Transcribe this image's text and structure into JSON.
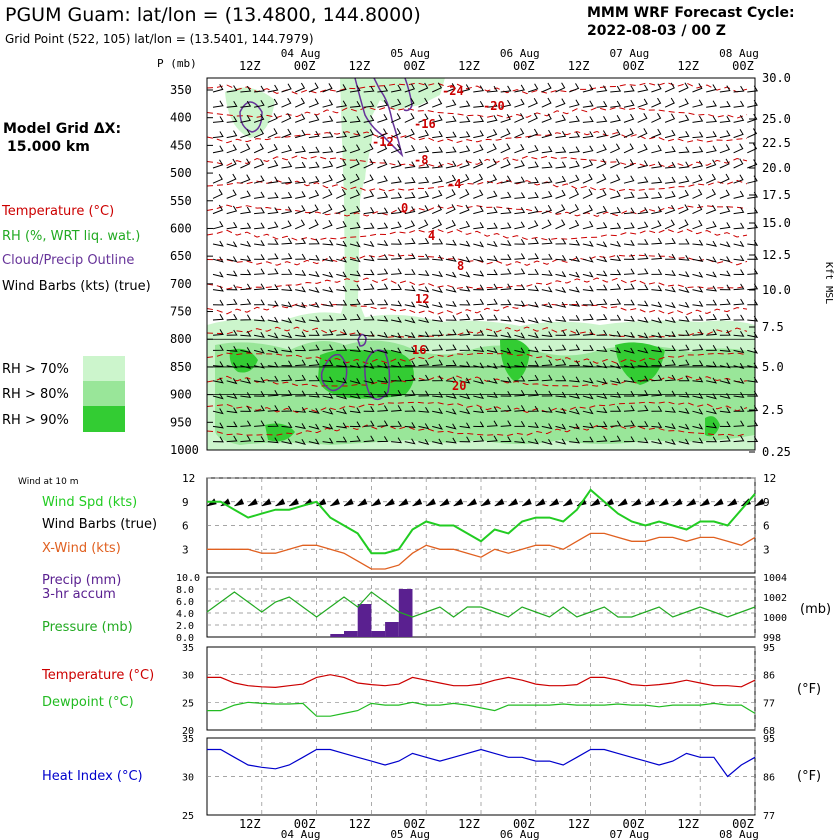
{
  "header": {
    "title": "PGUM Guam:  lat/lon = (13.4800, 144.8000)",
    "subtitle": "Grid Point (522, 105) lat/lon = (13.5401, 144.7979)",
    "model": "MMM WRF Forecast Cycle:",
    "cycle": "2022-08-03 / 00  Z",
    "grid_label": "Model Grid ΔX:",
    "grid_value": "15.000 km"
  },
  "legend": {
    "temperature": "Temperature (°C)",
    "rh": "RH (%, WRT liq. wat.)",
    "cloud": "Cloud/Precip Outline",
    "barbs": "Wind Barbs (kts) (true)",
    "rh70": "RH > 70%",
    "rh80": "RH > 80%",
    "rh90": "RH > 90%",
    "wind10m": "Wind at 10 m",
    "wspd": "Wind Spd (kts)",
    "wbarbs": "Wind Barbs (true)",
    "xwind": "X-Wind (kts)",
    "precip": "Precip (mm)",
    "precip2": "3-hr accum",
    "pressure": "Pressure (mb)",
    "pres_unit": "(mb)",
    "temp": "Temperature (°C)",
    "dewpoint": "Dewpoint (°C)",
    "temp_unit": "(°F)",
    "heatindex": "Heat Index (°C)",
    "hi_unit": "(°F)"
  },
  "colors": {
    "temperature": "#cc0000",
    "rh70": "#ccf5cc",
    "rh80": "#99e699",
    "rh90": "#33cc33",
    "cloud": "#663399",
    "wind_speed": "#22cc22",
    "x_wind": "#e06020",
    "precip": "#5a2090",
    "pressure": "#22aa22",
    "dewpoint": "#22bb22",
    "heat_index": "#0000cc"
  },
  "chart_data": [
    {
      "type": "heatmap",
      "panel": "cross-section",
      "time_labels": [
        "12Z",
        "00Z",
        "12Z",
        "00Z",
        "12Z",
        "00Z",
        "12Z",
        "00Z",
        "12Z",
        "00Z"
      ],
      "date_labels": [
        "04 Aug",
        "05 Aug",
        "06 Aug",
        "07 Aug",
        "08 Aug"
      ],
      "ylabel": "P (mb)",
      "y2label": "Kft MSL",
      "pressure_ticks": [
        350,
        400,
        450,
        500,
        550,
        600,
        650,
        700,
        750,
        800,
        850,
        900,
        950,
        1000
      ],
      "height_ticks": [
        "30.0",
        "25.0",
        "22.5",
        "20.0",
        "17.5",
        "15.0",
        "12.5",
        "10.0",
        "7.5",
        "5.0",
        "2.5",
        "0.25"
      ],
      "isotherm_labels": [
        "-24",
        "-20",
        "-16",
        "-12",
        "-8",
        "-4",
        "0",
        "4",
        "8",
        "12",
        "16",
        "20"
      ]
    },
    {
      "type": "line",
      "panel": "wind",
      "yticks": [
        3,
        6,
        9,
        12
      ],
      "ylim": [
        0,
        12
      ],
      "series": [
        {
          "name": "Wind Spd (kts)",
          "x": [
            0,
            3,
            6,
            9,
            12,
            15,
            18,
            21,
            24,
            27,
            30,
            33,
            36,
            39,
            42,
            45,
            48,
            51,
            54,
            57,
            60,
            63,
            66,
            69,
            72,
            75,
            78,
            81,
            84,
            87,
            90,
            93,
            96,
            99,
            102,
            105,
            108,
            111,
            114,
            117,
            120
          ],
          "values": [
            9,
            9,
            8,
            7,
            7.5,
            8,
            8,
            8.5,
            9,
            7,
            6,
            5,
            2.5,
            2.5,
            3,
            5.5,
            6.5,
            6,
            6,
            5,
            4,
            5.5,
            5,
            6.5,
            7,
            7,
            6.5,
            8,
            10.5,
            9,
            7.5,
            6.5,
            6,
            6.5,
            6,
            5.5,
            6.5,
            6.5,
            6,
            8,
            10
          ]
        },
        {
          "name": "X-Wind (kts)",
          "x": [
            0,
            3,
            6,
            9,
            12,
            15,
            18,
            21,
            24,
            27,
            30,
            33,
            36,
            39,
            42,
            45,
            48,
            51,
            54,
            57,
            60,
            63,
            66,
            69,
            72,
            75,
            78,
            81,
            84,
            87,
            90,
            93,
            96,
            99,
            102,
            105,
            108,
            111,
            114,
            117,
            120
          ],
          "values": [
            3,
            3,
            3,
            3,
            2.5,
            2.5,
            3,
            3.5,
            3.5,
            3,
            2.5,
            1.5,
            0.5,
            0.5,
            1,
            2.5,
            3.5,
            3,
            3,
            2.5,
            2,
            3,
            2.5,
            3,
            3.5,
            3.5,
            3,
            4,
            5,
            5,
            4.5,
            4,
            4,
            4.5,
            4.5,
            4,
            4.5,
            4.5,
            4,
            3.5,
            4.5
          ]
        }
      ]
    },
    {
      "type": "bar",
      "panel": "precip-pressure",
      "precip_ylim": [
        0,
        10
      ],
      "precip_ticks": [
        "0.0",
        "2.0",
        "4.0",
        "6.0",
        "8.0",
        "10.0"
      ],
      "pressure_ylim": [
        998,
        1004
      ],
      "pressure_ticks": [
        998,
        1000,
        1002,
        1004
      ],
      "precip": {
        "x": [
          27,
          30,
          33,
          36,
          39,
          42
        ],
        "values": [
          0.5,
          1,
          5.5,
          1,
          2.5,
          8
        ]
      },
      "pressure": {
        "x": [
          0,
          3,
          6,
          9,
          12,
          15,
          18,
          21,
          24,
          27,
          30,
          33,
          36,
          39,
          42,
          45,
          48,
          51,
          54,
          57,
          60,
          63,
          66,
          69,
          72,
          75,
          78,
          81,
          84,
          87,
          90,
          93,
          96,
          99,
          102,
          105,
          108,
          111,
          114,
          117,
          120
        ],
        "values": [
          1000.5,
          1001.5,
          1002.5,
          1001.5,
          1000.5,
          1001.5,
          1002,
          1001,
          1000,
          1001,
          1002,
          1001,
          1002.5,
          1001.5,
          1000.5,
          1000,
          1000.5,
          1001,
          1000,
          1001,
          1001,
          1000.5,
          1000,
          1001,
          1000.5,
          1000,
          1001,
          1000,
          1000.5,
          1001,
          1000,
          1000,
          1000.5,
          1001,
          1000,
          1000.5,
          1001,
          1000.5,
          1000,
          1000.5,
          1001
        ]
      }
    },
    {
      "type": "line",
      "panel": "temperature",
      "ylim": [
        20,
        35
      ],
      "yticks": [
        20,
        25,
        30,
        35
      ],
      "y2ticks": [
        68,
        77,
        86,
        95
      ],
      "series": [
        {
          "name": "Temperature (°C)",
          "x": [
            0,
            3,
            6,
            9,
            12,
            15,
            18,
            21,
            24,
            27,
            30,
            33,
            36,
            39,
            42,
            45,
            48,
            51,
            54,
            57,
            60,
            63,
            66,
            69,
            72,
            75,
            78,
            81,
            84,
            87,
            90,
            93,
            96,
            99,
            102,
            105,
            108,
            111,
            114,
            117,
            120
          ],
          "values": [
            29.5,
            29.5,
            28.5,
            28,
            27.8,
            27.7,
            28,
            28.3,
            29.5,
            30,
            29.5,
            28.5,
            28.2,
            28,
            28.3,
            29.5,
            29,
            28.5,
            28,
            28,
            28.3,
            29,
            29.5,
            29,
            28.3,
            28,
            28,
            28.2,
            29.5,
            29.5,
            29,
            28.2,
            28,
            28.2,
            28.5,
            29,
            28.5,
            28,
            28,
            27.8,
            29
          ]
        },
        {
          "name": "Dewpoint (°C)",
          "x": [
            0,
            3,
            6,
            9,
            12,
            15,
            18,
            21,
            24,
            27,
            30,
            33,
            36,
            39,
            42,
            45,
            48,
            51,
            54,
            57,
            60,
            63,
            66,
            69,
            72,
            75,
            78,
            81,
            84,
            87,
            90,
            93,
            96,
            99,
            102,
            105,
            108,
            111,
            114,
            117,
            120
          ],
          "values": [
            23.5,
            23.5,
            24.5,
            25,
            24.8,
            24.7,
            24.7,
            24.8,
            22.5,
            22.5,
            23,
            23.5,
            24.8,
            24.5,
            24.5,
            25,
            24.5,
            24.5,
            24.8,
            24.5,
            24,
            23.5,
            24.5,
            24.5,
            24.5,
            24.5,
            24.7,
            24.5,
            24.5,
            24.5,
            24.7,
            24.5,
            24.5,
            24.2,
            24.5,
            24.5,
            24.5,
            24.8,
            24.5,
            24.5,
            23
          ]
        }
      ]
    },
    {
      "type": "line",
      "panel": "heat-index",
      "ylim": [
        25,
        35
      ],
      "yticks": [
        25,
        30,
        35
      ],
      "y2ticks": [
        77,
        86,
        95
      ],
      "series": [
        {
          "name": "Heat Index (°C)",
          "x": [
            0,
            3,
            6,
            9,
            12,
            15,
            18,
            21,
            24,
            27,
            30,
            33,
            36,
            39,
            42,
            45,
            48,
            51,
            54,
            57,
            60,
            63,
            66,
            69,
            72,
            75,
            78,
            81,
            84,
            87,
            90,
            93,
            96,
            99,
            102,
            105,
            108,
            111,
            114,
            117,
            120
          ],
          "values": [
            33.5,
            33.5,
            32.5,
            31.5,
            31.2,
            31,
            31.5,
            32.5,
            33.5,
            33.5,
            33,
            32.5,
            32,
            31.5,
            32,
            33,
            32.5,
            32,
            32.5,
            33,
            33.5,
            33,
            32.5,
            32.5,
            32,
            32,
            31.5,
            32.5,
            33.5,
            33.5,
            33,
            32.5,
            32,
            31.5,
            32,
            33,
            32.5,
            32.5,
            30,
            31.5,
            32.5
          ]
        }
      ]
    }
  ]
}
